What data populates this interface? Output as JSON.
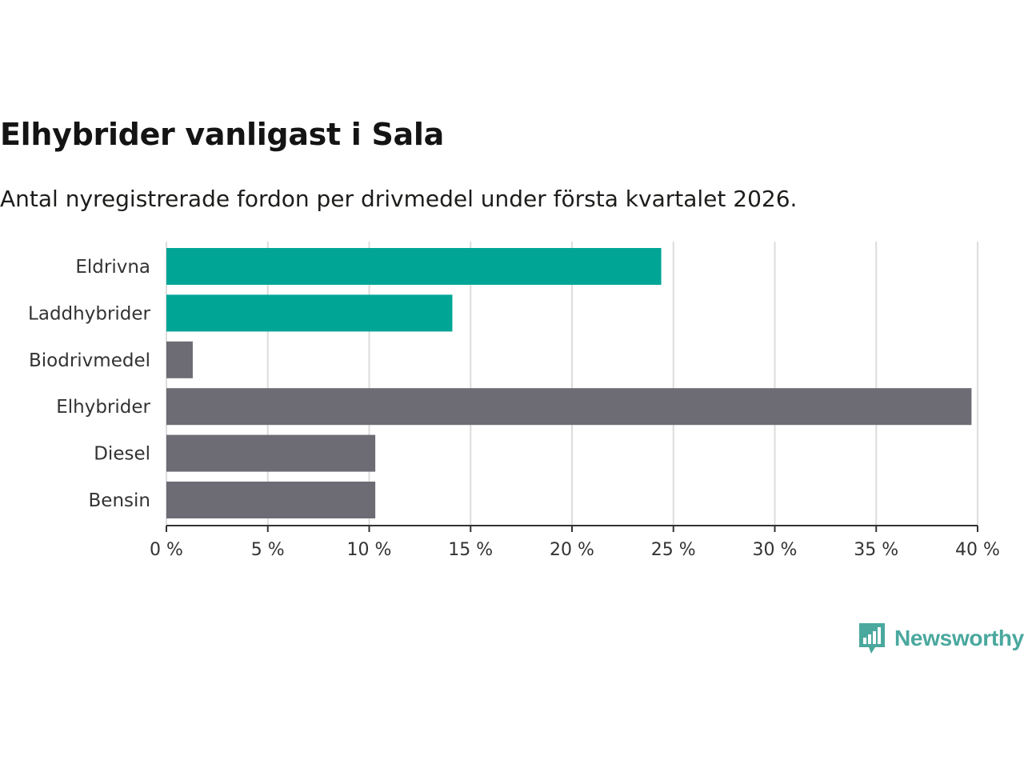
{
  "chart_data": {
    "type": "bar",
    "orientation": "horizontal",
    "title": "Elhybrider vanligast i Sala",
    "subtitle": "Antal nyregistrerade fordon per drivmedel under första kvartalet 2026.",
    "categories": [
      "Eldrivna",
      "Laddhybrider",
      "Biodrivmedel",
      "Elhybrider",
      "Diesel",
      "Bensin"
    ],
    "values": [
      24.4,
      14.1,
      1.3,
      39.7,
      10.3,
      10.3
    ],
    "colors": [
      "#00a596",
      "#00a596",
      "#6d6c74",
      "#6d6c74",
      "#6d6c74",
      "#6d6c74"
    ],
    "xlim": [
      0,
      40
    ],
    "xticks": [
      0,
      5,
      10,
      15,
      20,
      25,
      30,
      35,
      40
    ],
    "xtick_labels": [
      "0 %",
      "5 %",
      "10 %",
      "15 %",
      "20 %",
      "25 %",
      "30 %",
      "35 %",
      "40 %"
    ],
    "xlabel": "",
    "ylabel": "",
    "grid": true
  },
  "logo": {
    "text": "Newsworthy",
    "icon": "bar-chart-speech-bubble-icon",
    "color": "#4aa89e"
  }
}
